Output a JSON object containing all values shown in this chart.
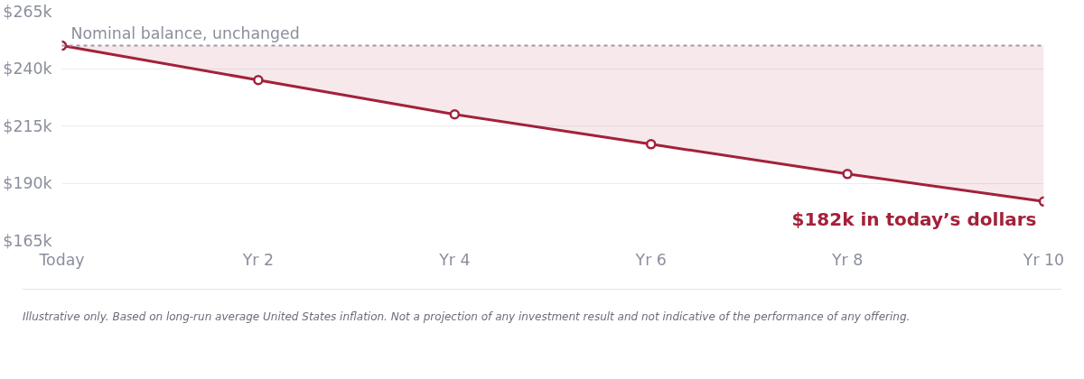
{
  "chart_data": {
    "type": "line",
    "categories": [
      "Today",
      "Yr 2",
      "Yr 4",
      "Yr 6",
      "Yr 8",
      "Yr 10"
    ],
    "series": [
      {
        "color": "#a3213a",
        "values": [
          250,
          235,
          220,
          207,
          194,
          182
        ],
        "lower": [
          250,
          235,
          220,
          207,
          194,
          182
        ],
        "upper": [
          250,
          250,
          250,
          250,
          250,
          250
        ]
      }
    ],
    "ylim": [
      165,
      265
    ],
    "yticks": [
      {
        "value": 165,
        "label": "$165k"
      },
      {
        "value": 190,
        "label": "$190k"
      },
      {
        "value": 215,
        "label": "$215k"
      },
      {
        "value": 240,
        "label": "$240k"
      },
      {
        "value": 265,
        "label": "$265k"
      }
    ],
    "grid": "y",
    "marker": "circle",
    "line_style": "solid",
    "ref_lines": [
      {
        "axis": "y",
        "value": 250,
        "label": "Nominal balance, unchanged",
        "color": "#9a9aa6",
        "line_style": "dashed"
      }
    ],
    "annotations": [
      {
        "text": "$182k in today’s dollars",
        "x": "Yr 10",
        "y": 182
      },
      "Illustrative only. Based on long-run average United States inflation. Not a projection of any investment result and not indicative of the performance of any offering."
    ]
  }
}
